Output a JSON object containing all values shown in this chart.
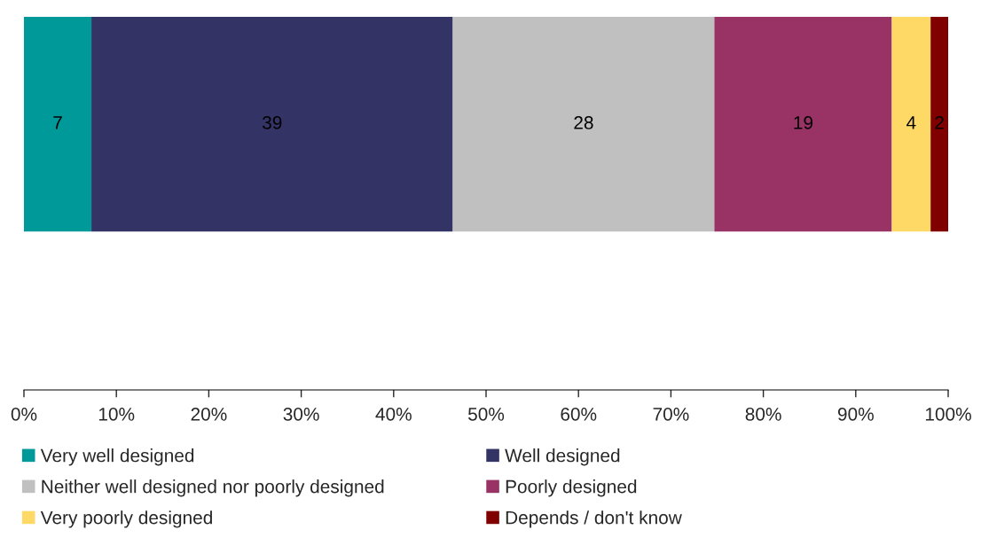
{
  "chart_data": {
    "type": "bar",
    "orientation": "horizontal",
    "stacked": true,
    "categories": [
      null
    ],
    "series": [
      {
        "name": "Very well designed",
        "color": "#009999",
        "values": [
          7.3
        ],
        "value_labels": [
          "7"
        ]
      },
      {
        "name": "Well designed",
        "color": "#333366",
        "values": [
          39.1
        ],
        "value_labels": [
          "39"
        ]
      },
      {
        "name": "Neither well designed nor poorly designed",
        "color": "#c0c0c0",
        "values": [
          28.3
        ],
        "value_labels": [
          "28"
        ]
      },
      {
        "name": "Poorly designed",
        "color": "#993366",
        "values": [
          19.2
        ],
        "value_labels": [
          "19"
        ]
      },
      {
        "name": "Very poorly designed",
        "color": "#ffd966",
        "values": [
          4.2
        ],
        "value_labels": [
          "4"
        ]
      },
      {
        "name": "Depends / don't know",
        "color": "#800000",
        "values": [
          1.9
        ],
        "value_labels": [
          "2"
        ]
      }
    ],
    "xlim": [
      0,
      100
    ],
    "xticks": [
      {
        "value": 0,
        "label": "0%"
      },
      {
        "value": 10,
        "label": "10%"
      },
      {
        "value": 20,
        "label": "20%"
      },
      {
        "value": 30,
        "label": "30%"
      },
      {
        "value": 40,
        "label": "40%"
      },
      {
        "value": 50,
        "label": "50%"
      },
      {
        "value": 60,
        "label": "60%"
      },
      {
        "value": 70,
        "label": "70%"
      },
      {
        "value": 80,
        "label": "80%"
      },
      {
        "value": 90,
        "label": "90%"
      },
      {
        "value": 100,
        "label": "100%"
      }
    ],
    "grid": false,
    "legend": "bottom"
  }
}
